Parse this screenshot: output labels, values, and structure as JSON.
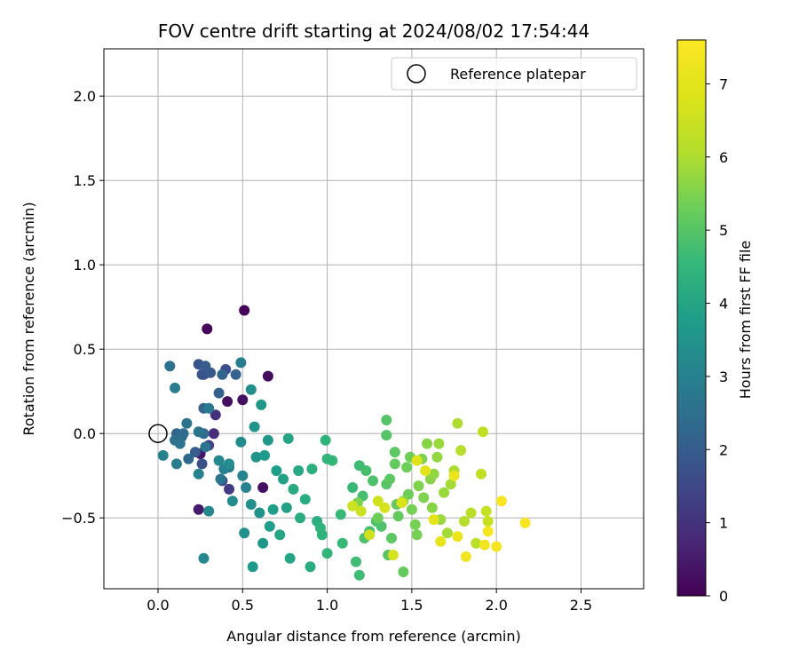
{
  "chart_data": {
    "type": "scatter",
    "title": "FOV centre drift starting at 2024/08/02 17:54:44",
    "xlabel": "Angular distance from reference (arcmin)",
    "ylabel": "Rotation from reference (arcmin)",
    "xlim": [
      -0.32,
      2.87
    ],
    "ylim": [
      -0.92,
      2.28
    ],
    "xticks": [
      0.0,
      0.5,
      1.0,
      1.5,
      2.0,
      2.5
    ],
    "xtick_labels": [
      "0.0",
      "0.5",
      "1.0",
      "1.5",
      "2.0",
      "2.5"
    ],
    "yticks": [
      -0.5,
      0.0,
      0.5,
      1.0,
      1.5,
      2.0
    ],
    "ytick_labels": [
      "−0.5",
      "0.0",
      "0.5",
      "1.0",
      "1.5",
      "2.0"
    ],
    "grid": true,
    "legend": {
      "position": "top-right",
      "entries": [
        "Reference platepar"
      ]
    },
    "reference_point": {
      "x": 0.0,
      "y": 0.0,
      "label": "Reference platepar"
    },
    "colorbar": {
      "label": "Hours from first FF file",
      "range": [
        0,
        7.6
      ],
      "colormap": "viridis",
      "ticks": [
        0,
        1,
        2,
        3,
        4,
        5,
        6,
        7
      ],
      "tick_labels": [
        "0",
        "1",
        "2",
        "3",
        "4",
        "5",
        "6",
        "7"
      ]
    },
    "points": [
      [
        0.51,
        0.73,
        0.1
      ],
      [
        0.29,
        0.62,
        0.1
      ],
      [
        0.65,
        0.34,
        0.2
      ],
      [
        0.5,
        0.2,
        0.3
      ],
      [
        0.41,
        0.19,
        0.3
      ],
      [
        0.62,
        -0.32,
        0.3
      ],
      [
        0.25,
        -0.12,
        0.4
      ],
      [
        0.24,
        -0.45,
        0.5
      ],
      [
        0.33,
        0.0,
        0.9
      ],
      [
        0.34,
        0.11,
        1.0
      ],
      [
        0.27,
        0.35,
        1.2
      ],
      [
        0.42,
        -0.33,
        1.2
      ],
      [
        0.3,
        -0.07,
        1.4
      ],
      [
        0.38,
        -0.28,
        1.6
      ],
      [
        0.4,
        0.38,
        1.6
      ],
      [
        0.26,
        -0.18,
        1.7
      ],
      [
        0.24,
        0.41,
        1.8
      ],
      [
        0.26,
        0.35,
        1.8
      ],
      [
        0.31,
        0.36,
        1.9
      ],
      [
        0.28,
        0.4,
        2.0
      ],
      [
        0.22,
        -0.11,
        2.0
      ],
      [
        0.36,
        0.24,
        2.1
      ],
      [
        0.27,
        0.15,
        2.1
      ],
      [
        0.46,
        0.35,
        2.1
      ],
      [
        0.38,
        0.35,
        2.2
      ],
      [
        0.11,
        0.0,
        2.2
      ],
      [
        0.14,
        -0.02,
        2.3
      ],
      [
        0.18,
        -0.15,
        2.3
      ],
      [
        0.15,
        0.0,
        2.4
      ],
      [
        0.27,
        0.0,
        2.4
      ],
      [
        0.07,
        0.4,
        2.5
      ],
      [
        0.1,
        -0.04,
        2.5
      ],
      [
        0.13,
        -0.06,
        2.6
      ],
      [
        0.17,
        0.06,
        2.6
      ],
      [
        0.24,
        0.01,
        2.6
      ],
      [
        0.28,
        -0.08,
        2.7
      ],
      [
        0.37,
        -0.27,
        2.7
      ],
      [
        0.3,
        0.15,
        2.8
      ],
      [
        0.42,
        -0.2,
        2.8
      ],
      [
        0.49,
        0.42,
        2.9
      ],
      [
        0.1,
        0.27,
        2.9
      ],
      [
        0.11,
        -0.18,
        2.9
      ],
      [
        0.03,
        -0.13,
        3.0
      ],
      [
        0.24,
        -0.24,
        3.0
      ],
      [
        0.39,
        -0.21,
        3.0
      ],
      [
        0.5,
        -0.25,
        3.1
      ],
      [
        0.52,
        -0.32,
        3.1
      ],
      [
        0.27,
        -0.74,
        3.2
      ],
      [
        0.3,
        -0.46,
        3.2
      ],
      [
        0.36,
        -0.16,
        3.2
      ],
      [
        0.42,
        -0.18,
        3.3
      ],
      [
        0.44,
        -0.4,
        3.3
      ],
      [
        0.49,
        -0.05,
        3.3
      ],
      [
        0.51,
        -0.59,
        3.4
      ],
      [
        0.55,
        0.26,
        3.4
      ],
      [
        0.55,
        -0.42,
        3.4
      ],
      [
        0.57,
        0.04,
        3.5
      ],
      [
        0.58,
        -0.14,
        3.5
      ],
      [
        0.6,
        -0.47,
        3.5
      ],
      [
        0.61,
        0.17,
        3.6
      ],
      [
        0.62,
        -0.65,
        3.6
      ],
      [
        0.65,
        -0.04,
        3.6
      ],
      [
        0.63,
        -0.13,
        3.7
      ],
      [
        0.56,
        -0.79,
        3.7
      ],
      [
        0.68,
        -0.45,
        3.8
      ],
      [
        0.66,
        -0.55,
        3.8
      ],
      [
        0.7,
        -0.22,
        3.8
      ],
      [
        0.74,
        -0.27,
        3.9
      ],
      [
        0.76,
        -0.44,
        3.9
      ],
      [
        0.72,
        -0.6,
        4.0
      ],
      [
        0.77,
        -0.03,
        4.0
      ],
      [
        0.78,
        -0.74,
        4.0
      ],
      [
        0.8,
        -0.33,
        4.1
      ],
      [
        0.83,
        -0.22,
        4.1
      ],
      [
        0.84,
        -0.5,
        4.2
      ],
      [
        0.87,
        -0.39,
        4.2
      ],
      [
        0.9,
        -0.79,
        4.2
      ],
      [
        0.91,
        -0.21,
        4.3
      ],
      [
        0.94,
        -0.52,
        4.3
      ],
      [
        0.96,
        -0.56,
        4.4
      ],
      [
        0.97,
        -0.6,
        4.4
      ],
      [
        0.99,
        -0.04,
        4.4
      ],
      [
        1.0,
        -0.15,
        4.5
      ],
      [
        1.0,
        -0.71,
        4.5
      ],
      [
        1.03,
        -0.16,
        4.5
      ],
      [
        1.08,
        -0.48,
        4.6
      ],
      [
        1.09,
        -0.65,
        4.6
      ],
      [
        1.15,
        -0.32,
        4.6
      ],
      [
        1.17,
        -0.76,
        4.7
      ],
      [
        1.19,
        -0.84,
        4.7
      ],
      [
        1.19,
        -0.19,
        4.7
      ],
      [
        1.21,
        -0.37,
        4.8
      ],
      [
        1.23,
        -0.22,
        4.8
      ],
      [
        1.25,
        -0.58,
        4.8
      ],
      [
        1.27,
        -0.28,
        4.9
      ],
      [
        1.29,
        -0.52,
        4.9
      ],
      [
        1.32,
        -0.55,
        4.9
      ],
      [
        1.35,
        0.08,
        5.0
      ],
      [
        1.35,
        -0.01,
        5.0
      ],
      [
        1.36,
        -0.72,
        5.0
      ],
      [
        1.37,
        -0.27,
        5.1
      ],
      [
        1.38,
        -0.62,
        5.1
      ],
      [
        1.4,
        -0.11,
        5.1
      ],
      [
        1.41,
        -0.42,
        5.2
      ],
      [
        1.42,
        -0.49,
        5.2
      ],
      [
        1.45,
        -0.82,
        5.2
      ],
      [
        1.47,
        -0.2,
        5.3
      ],
      [
        1.48,
        -0.36,
        5.3
      ],
      [
        1.49,
        -0.14,
        5.3
      ],
      [
        1.5,
        -0.45,
        5.4
      ],
      [
        1.52,
        -0.54,
        5.4
      ],
      [
        1.53,
        -0.6,
        5.4
      ],
      [
        1.54,
        -0.31,
        5.5
      ],
      [
        1.56,
        -0.15,
        5.5
      ],
      [
        1.57,
        -0.38,
        5.5
      ],
      [
        1.59,
        -0.06,
        5.6
      ],
      [
        1.61,
        -0.27,
        5.6
      ],
      [
        1.62,
        -0.44,
        5.6
      ],
      [
        1.63,
        -0.24,
        5.7
      ],
      [
        1.65,
        -0.14,
        5.7
      ],
      [
        1.66,
        -0.06,
        5.8
      ],
      [
        1.67,
        -0.51,
        5.8
      ],
      [
        1.69,
        -0.35,
        5.8
      ],
      [
        1.71,
        -0.59,
        5.9
      ],
      [
        1.73,
        -0.3,
        5.9
      ],
      [
        1.75,
        -0.22,
        6.0
      ],
      [
        1.77,
        0.06,
        6.0
      ],
      [
        1.79,
        -0.1,
        6.1
      ],
      [
        1.81,
        -0.52,
        6.1
      ],
      [
        1.85,
        -0.47,
        6.2
      ],
      [
        1.88,
        -0.65,
        6.2
      ],
      [
        1.91,
        -0.24,
        6.3
      ],
      [
        1.92,
        0.01,
        6.3
      ],
      [
        1.94,
        -0.46,
        6.4
      ],
      [
        1.95,
        -0.52,
        6.4
      ],
      [
        1.15,
        -0.43,
        6.5
      ],
      [
        1.2,
        -0.46,
        6.5
      ],
      [
        1.25,
        -0.6,
        6.6
      ],
      [
        1.3,
        -0.4,
        6.6
      ],
      [
        1.34,
        -0.44,
        6.7
      ],
      [
        1.39,
        -0.72,
        6.7
      ],
      [
        1.44,
        -0.41,
        6.8
      ],
      [
        1.53,
        -0.16,
        6.9
      ],
      [
        1.58,
        -0.22,
        7.0
      ],
      [
        1.63,
        -0.51,
        7.0
      ],
      [
        1.67,
        -0.64,
        7.1
      ],
      [
        1.75,
        -0.25,
        7.2
      ],
      [
        1.77,
        -0.61,
        7.2
      ],
      [
        1.82,
        -0.73,
        7.3
      ],
      [
        1.93,
        -0.66,
        7.3
      ],
      [
        1.95,
        -0.58,
        7.4
      ],
      [
        2.0,
        -0.67,
        7.4
      ],
      [
        2.03,
        -0.4,
        7.5
      ],
      [
        2.17,
        -0.53,
        7.5
      ],
      [
        1.35,
        -0.3,
        5.0
      ],
      [
        1.3,
        -0.5,
        5.3
      ],
      [
        1.45,
        -0.4,
        5.6
      ],
      [
        1.4,
        -0.18,
        5.2
      ],
      [
        1.22,
        -0.62,
        4.9
      ],
      [
        1.18,
        -0.41,
        5.5
      ]
    ]
  }
}
